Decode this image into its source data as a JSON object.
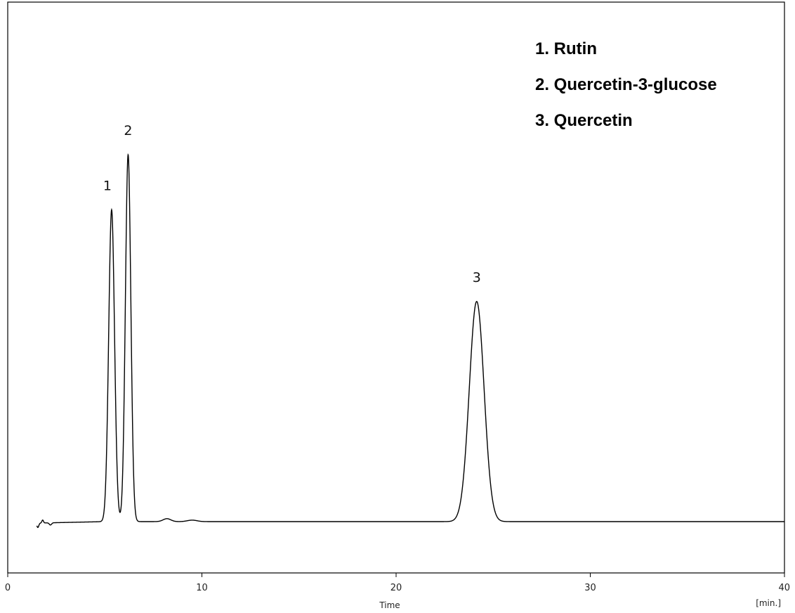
{
  "chart_data": {
    "type": "line",
    "xlabel": "Time",
    "x_unit": "[min.]",
    "xlim": [
      0,
      40
    ],
    "x_ticks": [
      0,
      10,
      20,
      30,
      40
    ],
    "ylabel": "",
    "grid": false,
    "legend_position": "top-right",
    "legend": [
      "1. Rutin",
      "2. Quercetin-3-glucose",
      "3. Quercetin"
    ],
    "baseline": 0,
    "ylim": [
      -0.12,
      1.12
    ],
    "peaks": [
      {
        "label": "1",
        "name": "Rutin",
        "time": 5.35,
        "height": 0.85,
        "sigma": 0.15
      },
      {
        "label": "2",
        "name": "Quercetin-3-glucose",
        "time": 6.2,
        "height": 1.0,
        "sigma": 0.14
      },
      {
        "label": "3",
        "name": "Quercetin",
        "time": 24.15,
        "height": 0.6,
        "sigma": 0.38
      }
    ],
    "minor_features": [
      {
        "time": 1.55,
        "height": 0.0,
        "dip": -0.012,
        "width": 0.05
      },
      {
        "time": 1.8,
        "height": 0.008,
        "dip": 0.0,
        "width": 0.04
      },
      {
        "time": 2.2,
        "height": 0.0,
        "dip": -0.006,
        "width": 0.06
      },
      {
        "time": 8.2,
        "height": 0.008,
        "dip": 0.0,
        "width": 0.2
      },
      {
        "time": 9.5,
        "height": 0.004,
        "dip": 0.0,
        "width": 0.25
      }
    ],
    "trace_start": 1.5,
    "trace_end": 40,
    "line_color": "#000000"
  }
}
